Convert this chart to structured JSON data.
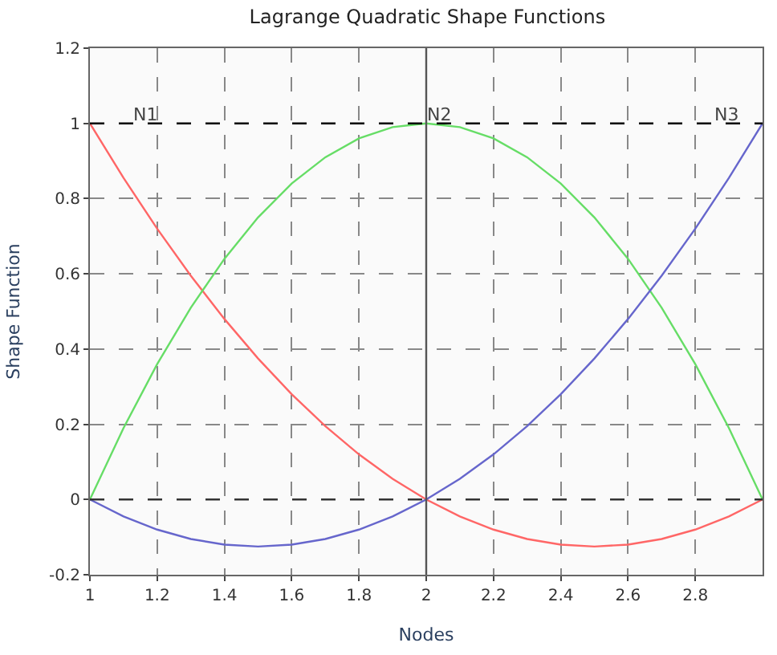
{
  "chart_data": {
    "type": "line",
    "title": "Lagrange Quadratic Shape Functions",
    "xlabel": "Nodes",
    "ylabel": "Shape Function",
    "x": [
      1,
      1.1,
      1.2,
      1.3,
      1.4,
      1.5,
      1.6,
      1.7,
      1.8,
      1.9,
      2,
      2.1,
      2.2,
      2.3,
      2.4,
      2.5,
      2.6,
      2.7,
      2.8,
      2.9,
      3
    ],
    "series": [
      {
        "color": "#ff6666",
        "values": [
          1,
          0.855,
          0.72,
          0.595,
          0.48,
          0.375,
          0.28,
          0.195,
          0.12,
          0.055,
          0,
          -0.045,
          -0.08,
          -0.105,
          -0.12,
          -0.125,
          -0.12,
          -0.105,
          -0.08,
          -0.045,
          0
        ]
      },
      {
        "color": "#66dd66",
        "values": [
          0,
          0.19,
          0.36,
          0.51,
          0.64,
          0.75,
          0.84,
          0.91,
          0.96,
          0.99,
          1,
          0.99,
          0.96,
          0.91,
          0.84,
          0.75,
          0.64,
          0.51,
          0.36,
          0.19,
          0
        ]
      },
      {
        "color": "#6666cc",
        "values": [
          0,
          -0.045,
          -0.08,
          -0.105,
          -0.12,
          -0.125,
          -0.12,
          -0.105,
          -0.08,
          -0.045,
          0,
          0.055,
          0.12,
          0.195,
          0.28,
          0.375,
          0.48,
          0.595,
          0.72,
          0.855,
          1
        ]
      }
    ],
    "annotations": [
      "N1",
      "N2",
      "N3"
    ],
    "ref_lines": [
      {
        "axis": "x",
        "value": 2,
        "color": "#555555",
        "line_style": "solid"
      },
      {
        "axis": "y",
        "value": 1,
        "color": "#000000",
        "line_style": "dashed"
      },
      {
        "axis": "y",
        "value": 0,
        "color": "#333333",
        "line_style": "dashed"
      }
    ],
    "xlim": [
      1,
      3
    ],
    "xticks": [
      1,
      1.2,
      1.4,
      1.6,
      1.8,
      2,
      2.2,
      2.4,
      2.6,
      2.8
    ],
    "ylim": [
      -0.2,
      1.2
    ],
    "yticks": [
      -0.2,
      0,
      0.2,
      0.4,
      0.6,
      0.8,
      1,
      1.2
    ],
    "grid": true,
    "legend": false,
    "marker": "none",
    "line_style": "solid"
  }
}
